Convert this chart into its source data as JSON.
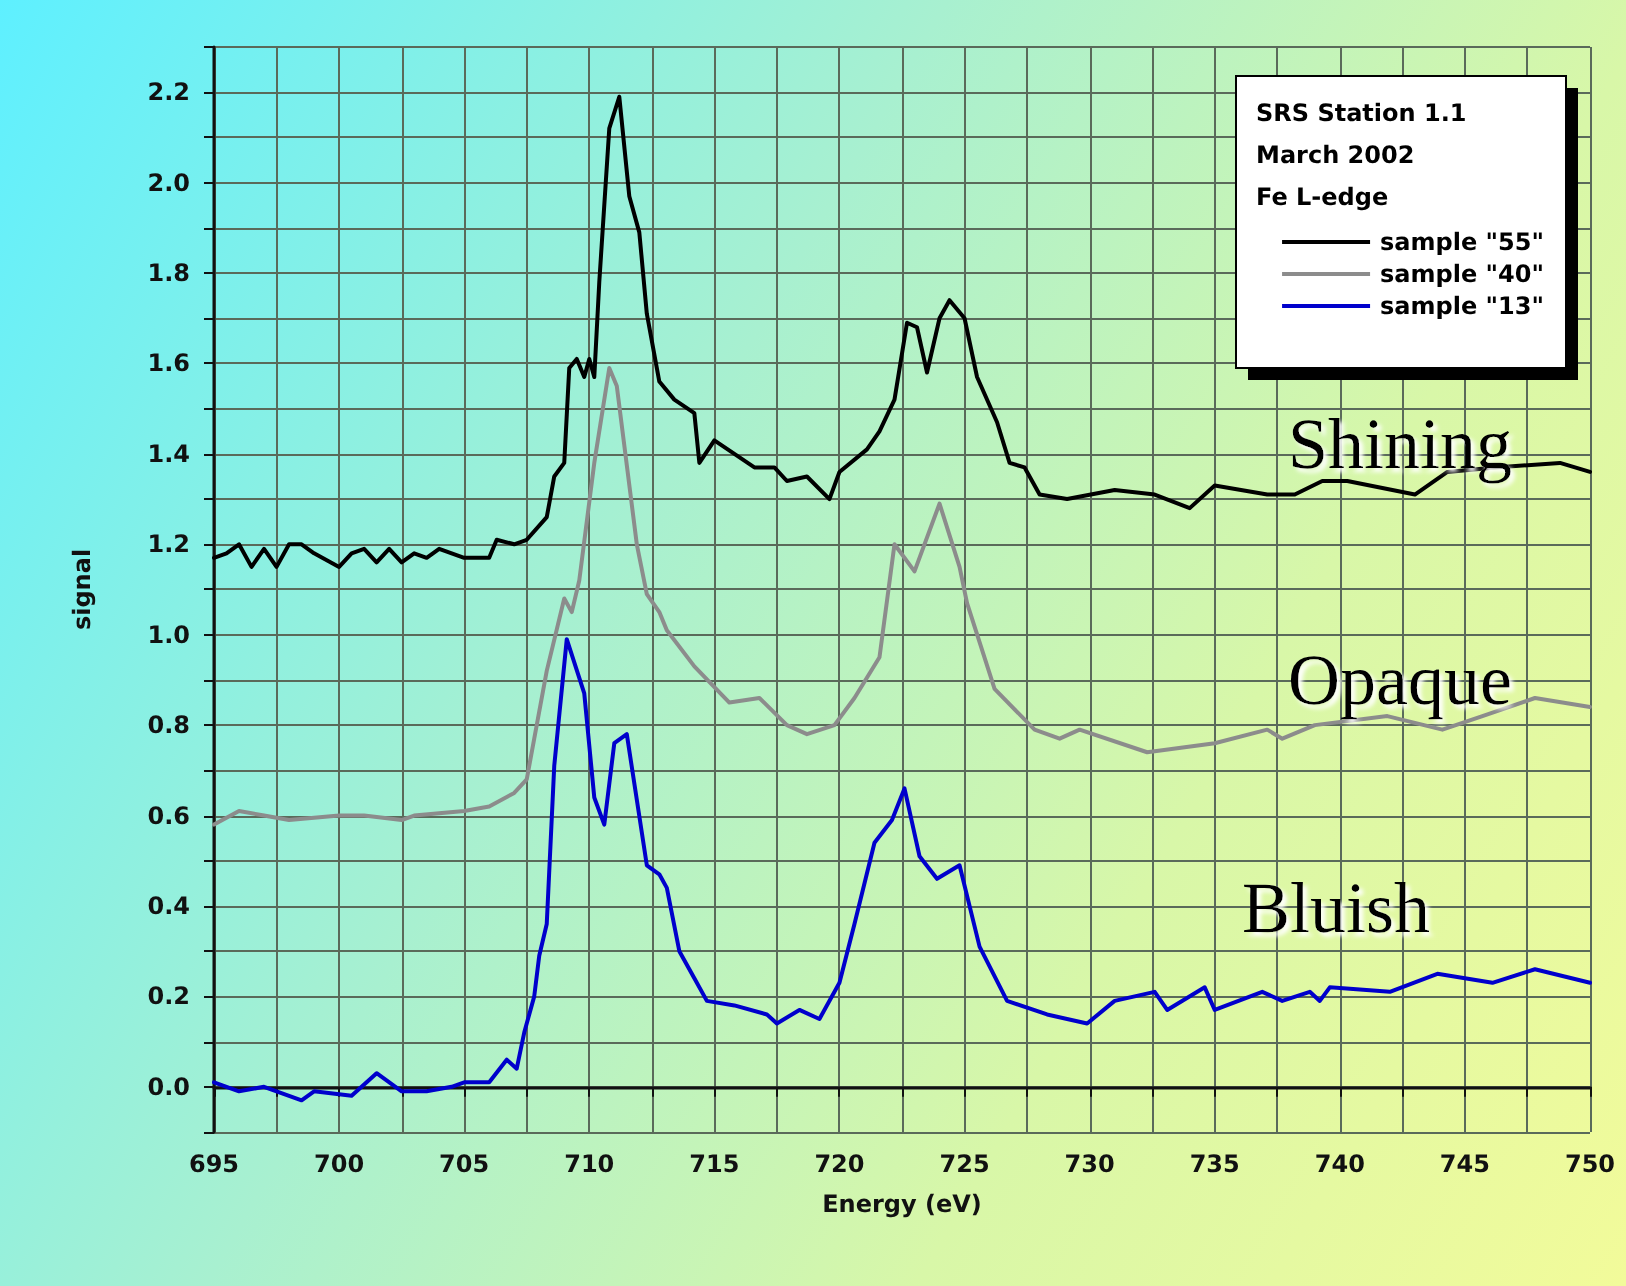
{
  "chart_data": {
    "type": "line",
    "xlabel": "Energy (eV)",
    "ylabel": "signal",
    "legend_title": "SRS Station 1.1\nMarch 2002\nFe L-edge",
    "legend": "top right",
    "grid": true,
    "marker": "none",
    "line_style": "solid",
    "xlim": [
      695,
      750
    ],
    "ylim": [
      -0.1,
      2.3
    ],
    "xticks": [
      695,
      {
        "value": 697.5,
        "label": null
      },
      700,
      {
        "value": 702.5,
        "label": null
      },
      705,
      {
        "value": 707.5,
        "label": null
      },
      710,
      {
        "value": 712.5,
        "label": null
      },
      715,
      {
        "value": 717.5,
        "label": null
      },
      720,
      {
        "value": 722.5,
        "label": null
      },
      725,
      {
        "value": 727.5,
        "label": null
      },
      730,
      {
        "value": 732.5,
        "label": null
      },
      735,
      {
        "value": 737.5,
        "label": null
      },
      740,
      {
        "value": 742.5,
        "label": null
      },
      745,
      {
        "value": 747.5,
        "label": null
      },
      750
    ],
    "yticks": [
      {
        "value": -0.1,
        "label": null
      },
      {
        "value": 0,
        "label": "0.0"
      },
      {
        "value": 0.1,
        "label": null
      },
      {
        "value": 0.2,
        "label": "0.2"
      },
      {
        "value": 0.3,
        "label": null
      },
      {
        "value": 0.4,
        "label": "0.4"
      },
      {
        "value": 0.5,
        "label": null
      },
      {
        "value": 0.6,
        "label": "0.6"
      },
      {
        "value": 0.7,
        "label": null
      },
      {
        "value": 0.8,
        "label": "0.8"
      },
      {
        "value": 0.9,
        "label": null
      },
      {
        "value": 1.0,
        "label": "1.0"
      },
      {
        "value": 1.1,
        "label": null
      },
      {
        "value": 1.2,
        "label": "1.2"
      },
      {
        "value": 1.3,
        "label": null
      },
      {
        "value": 1.4,
        "label": "1.4"
      },
      {
        "value": 1.5,
        "label": null
      },
      {
        "value": 1.6,
        "label": "1.6"
      },
      {
        "value": 1.7,
        "label": null
      },
      {
        "value": 1.8,
        "label": "1.8"
      },
      {
        "value": 1.9,
        "label": null
      },
      {
        "value": 2.0,
        "label": "2.0"
      },
      {
        "value": 2.1,
        "label": null
      },
      {
        "value": 2.2,
        "label": "2.2"
      },
      {
        "value": 2.3,
        "label": null
      }
    ],
    "series": [
      {
        "name": "sample \"55\"",
        "color": "#000000",
        "x": [
          695,
          695.5,
          696,
          696.5,
          697,
          697.5,
          698,
          698.5,
          699,
          700,
          700.5,
          701,
          701.5,
          702,
          702.5,
          703,
          703.5,
          704,
          705,
          706,
          706.3,
          707,
          707.5,
          708.3,
          708.6,
          709.0,
          709.2,
          709.5,
          709.8,
          710.0,
          710.2,
          710.4,
          710.8,
          711.2,
          711.6,
          712.0,
          712.3,
          712.8,
          713.4,
          714.2,
          714.4,
          715.0,
          715.8,
          716.6,
          717.4,
          717.9,
          718.7,
          719.6,
          720.0,
          721.1,
          721.6,
          722.2,
          722.7,
          723.1,
          723.5,
          724.0,
          724.4,
          725.0,
          725.5,
          726.3,
          726.8,
          727.4,
          728.0,
          729.1,
          731.0,
          732.6,
          734.0,
          735.0,
          737.1,
          738.2,
          739.3,
          740.3,
          743.0,
          744.3,
          746.2,
          748.8,
          750
        ],
        "values": [
          1.17,
          1.18,
          1.2,
          1.15,
          1.19,
          1.15,
          1.2,
          1.2,
          1.18,
          1.15,
          1.18,
          1.19,
          1.16,
          1.19,
          1.16,
          1.18,
          1.17,
          1.19,
          1.17,
          1.17,
          1.21,
          1.2,
          1.21,
          1.26,
          1.35,
          1.38,
          1.59,
          1.61,
          1.57,
          1.61,
          1.57,
          1.78,
          2.12,
          2.19,
          1.97,
          1.89,
          1.71,
          1.56,
          1.52,
          1.49,
          1.38,
          1.43,
          1.4,
          1.37,
          1.37,
          1.34,
          1.35,
          1.3,
          1.36,
          1.41,
          1.45,
          1.52,
          1.69,
          1.68,
          1.58,
          1.7,
          1.74,
          1.7,
          1.57,
          1.47,
          1.38,
          1.37,
          1.31,
          1.3,
          1.32,
          1.31,
          1.28,
          1.33,
          1.31,
          1.31,
          1.34,
          1.34,
          1.31,
          1.36,
          1.37,
          1.38,
          1.36
        ]
      },
      {
        "name": "sample \"40\"",
        "color": "#8c8c8c",
        "x": [
          695,
          696,
          697,
          698,
          700,
          701,
          702.5,
          703,
          705,
          706,
          707,
          707.5,
          707.8,
          708.3,
          709.0,
          709.3,
          709.6,
          710.2,
          710.8,
          711.1,
          711.9,
          712.3,
          712.8,
          713.1,
          714.2,
          715.6,
          716.8,
          717.9,
          718.7,
          719.8,
          720.6,
          721.6,
          722.2,
          723.0,
          724.0,
          724.8,
          725.1,
          726.2,
          727.8,
          728.8,
          729.6,
          732.3,
          735.0,
          737.1,
          737.7,
          739.0,
          741.9,
          744.1,
          745.7,
          747.8,
          750
        ],
        "values": [
          0.58,
          0.61,
          0.6,
          0.59,
          0.6,
          0.6,
          0.59,
          0.6,
          0.61,
          0.62,
          0.65,
          0.68,
          0.77,
          0.92,
          1.08,
          1.05,
          1.12,
          1.38,
          1.59,
          1.55,
          1.2,
          1.09,
          1.05,
          1.01,
          0.93,
          0.85,
          0.86,
          0.8,
          0.78,
          0.8,
          0.86,
          0.95,
          1.2,
          1.14,
          1.29,
          1.15,
          1.07,
          0.88,
          0.79,
          0.77,
          0.79,
          0.74,
          0.76,
          0.79,
          0.77,
          0.8,
          0.82,
          0.79,
          0.82,
          0.86,
          0.84
        ]
      },
      {
        "name": "sample \"13\"",
        "color": "#0000cc",
        "x": [
          695,
          696,
          697,
          698.5,
          699,
          700.5,
          701.5,
          702.5,
          703.5,
          704.5,
          705,
          706,
          706.7,
          707.1,
          707.4,
          707.8,
          708.0,
          708.3,
          708.6,
          709.1,
          709.8,
          710.2,
          710.6,
          711.0,
          711.5,
          712.3,
          712.8,
          713.1,
          713.6,
          714.2,
          714.7,
          715.8,
          717.1,
          717.5,
          718.4,
          719.2,
          720.0,
          720.6,
          721.4,
          722.1,
          722.6,
          723.2,
          723.9,
          724.8,
          725.6,
          726.7,
          728.3,
          729.9,
          731.0,
          732.6,
          733.1,
          734.6,
          735.0,
          736.9,
          737.7,
          738.8,
          739.2,
          739.6,
          742.0,
          743.9,
          746.1,
          747.8,
          750
        ],
        "values": [
          0.01,
          -0.01,
          0.0,
          -0.03,
          -0.01,
          -0.02,
          0.03,
          -0.01,
          -0.01,
          0.0,
          0.01,
          0.01,
          0.06,
          0.04,
          0.12,
          0.2,
          0.29,
          0.36,
          0.71,
          0.99,
          0.87,
          0.64,
          0.58,
          0.76,
          0.78,
          0.49,
          0.47,
          0.44,
          0.3,
          0.24,
          0.19,
          0.18,
          0.16,
          0.14,
          0.17,
          0.15,
          0.23,
          0.36,
          0.54,
          0.59,
          0.66,
          0.51,
          0.46,
          0.49,
          0.31,
          0.19,
          0.16,
          0.14,
          0.19,
          0.21,
          0.17,
          0.22,
          0.17,
          0.21,
          0.19,
          0.21,
          0.19,
          0.22,
          0.21,
          0.25,
          0.23,
          0.26,
          0.23
        ]
      }
    ],
    "annotations": [
      "Shining",
      "Opaque",
      "Bluish"
    ]
  }
}
